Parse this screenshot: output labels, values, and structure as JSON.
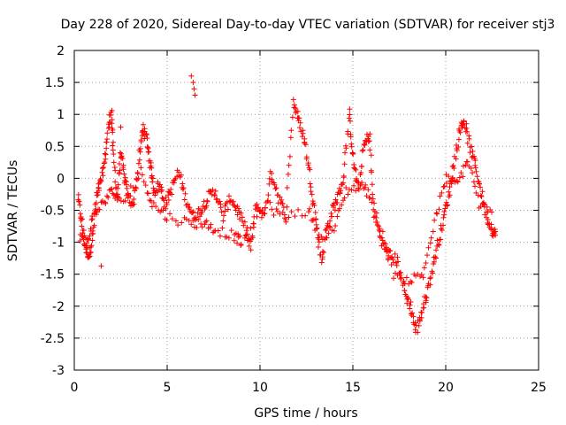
{
  "chart_data": {
    "type": "scatter",
    "title": "Day 228 of 2020, Sidereal Day-to-day VTEC variation (SDTVAR) for receiver stj3",
    "xlabel": "GPS time / hours",
    "ylabel": "SDTVAR / TECUs",
    "xlim": [
      0,
      25
    ],
    "ylim": [
      -3,
      2
    ],
    "xticks": [
      "0",
      "5",
      "10",
      "15",
      "20",
      "25"
    ],
    "yticks": [
      "2",
      "1.5",
      "1",
      "0.5",
      "0",
      "-0.5",
      "-1",
      "-1.5",
      "-2",
      "-2.5",
      "-3"
    ],
    "grid": true,
    "marker": "+",
    "series": [
      {
        "name": "SDTVAR",
        "color": "#ff0000",
        "trace": [
          [
            0.2,
            -0.3
          ],
          [
            0.4,
            -0.7
          ],
          [
            0.6,
            -1.1
          ],
          [
            0.8,
            -1.2
          ],
          [
            1.0,
            -0.9
          ],
          [
            1.2,
            -0.3
          ],
          [
            1.4,
            -0.1
          ],
          [
            1.6,
            0.2
          ],
          [
            1.8,
            0.7
          ],
          [
            2.0,
            1.1
          ],
          [
            2.1,
            0.4
          ],
          [
            2.3,
            -0.3
          ],
          [
            2.5,
            0.4
          ],
          [
            2.7,
            0.0
          ],
          [
            2.9,
            -0.3
          ],
          [
            3.2,
            -0.4
          ],
          [
            3.5,
            0.3
          ],
          [
            3.7,
            0.8
          ],
          [
            3.9,
            0.6
          ],
          [
            4.1,
            0.2
          ],
          [
            4.3,
            -0.2
          ],
          [
            4.6,
            -0.1
          ],
          [
            4.9,
            -0.4
          ],
          [
            5.2,
            -0.2
          ],
          [
            5.6,
            0.1
          ],
          [
            6.0,
            -0.3
          ],
          [
            6.4,
            -0.6
          ],
          [
            6.8,
            -0.5
          ],
          [
            7.2,
            -0.3
          ],
          [
            7.6,
            -0.2
          ],
          [
            8.0,
            -0.6
          ],
          [
            8.4,
            -0.3
          ],
          [
            8.8,
            -0.5
          ],
          [
            9.2,
            -0.8
          ],
          [
            9.5,
            -1.1
          ],
          [
            9.8,
            -0.4
          ],
          [
            10.2,
            -0.6
          ],
          [
            10.6,
            0.1
          ],
          [
            11.0,
            -0.3
          ],
          [
            11.4,
            -0.6
          ],
          [
            11.8,
            1.2
          ],
          [
            12.1,
            0.9
          ],
          [
            12.4,
            0.6
          ],
          [
            12.7,
            0.0
          ],
          [
            13.0,
            -0.6
          ],
          [
            13.3,
            -1.3
          ],
          [
            13.6,
            -0.8
          ],
          [
            13.9,
            -0.5
          ],
          [
            14.2,
            -0.3
          ],
          [
            14.5,
            0.0
          ],
          [
            14.8,
            1.0
          ],
          [
            15.0,
            0.3
          ],
          [
            15.3,
            -0.2
          ],
          [
            15.6,
            0.5
          ],
          [
            15.9,
            0.7
          ],
          [
            16.1,
            -0.5
          ],
          [
            16.4,
            -0.8
          ],
          [
            16.7,
            -1.1
          ],
          [
            17.0,
            -1.2
          ],
          [
            17.4,
            -1.3
          ],
          [
            17.8,
            -1.8
          ],
          [
            18.1,
            -2.0
          ],
          [
            18.4,
            -2.4
          ],
          [
            18.7,
            -2.1
          ],
          [
            19.0,
            -1.8
          ],
          [
            19.3,
            -1.4
          ],
          [
            19.6,
            -1.0
          ],
          [
            19.9,
            -0.6
          ],
          [
            20.2,
            -0.2
          ],
          [
            20.5,
            0.3
          ],
          [
            20.8,
            0.8
          ],
          [
            21.0,
            0.9
          ],
          [
            21.3,
            0.5
          ],
          [
            21.6,
            0.2
          ],
          [
            21.9,
            -0.2
          ],
          [
            22.2,
            -0.6
          ],
          [
            22.5,
            -0.8
          ],
          [
            22.7,
            -0.9
          ]
        ],
        "secondary_trace": [
          [
            0.3,
            -0.9
          ],
          [
            0.7,
            -1.0
          ],
          [
            1.0,
            -0.6
          ],
          [
            1.5,
            -0.4
          ],
          [
            2.0,
            -0.2
          ],
          [
            2.5,
            -0.4
          ],
          [
            3.6,
            0.1
          ],
          [
            4.2,
            -0.4
          ],
          [
            5.0,
            -0.6
          ],
          [
            6.2,
            -0.7
          ],
          [
            7.0,
            -0.7
          ],
          [
            7.6,
            -0.8
          ],
          [
            8.6,
            -0.9
          ],
          [
            9.0,
            -1.0
          ],
          [
            10.3,
            -0.4
          ],
          [
            11.2,
            -0.6
          ],
          [
            12.6,
            -0.5
          ],
          [
            13.2,
            -0.9
          ],
          [
            14.0,
            -0.8
          ],
          [
            14.6,
            -0.2
          ],
          [
            15.5,
            -0.1
          ],
          [
            16.0,
            -0.3
          ],
          [
            17.2,
            -1.5
          ],
          [
            18.0,
            -1.6
          ],
          [
            18.8,
            -1.5
          ],
          [
            19.4,
            -0.7
          ],
          [
            20.0,
            0.0
          ],
          [
            20.6,
            -0.1
          ],
          [
            21.2,
            0.3
          ],
          [
            21.8,
            -0.4
          ],
          [
            22.6,
            -0.6
          ]
        ],
        "isolated_points": [
          [
            6.3,
            1.6
          ],
          [
            6.4,
            1.5
          ],
          [
            6.45,
            1.4
          ],
          [
            6.5,
            1.3
          ],
          [
            1.45,
            -1.37
          ],
          [
            2.5,
            0.8
          ]
        ]
      }
    ]
  }
}
